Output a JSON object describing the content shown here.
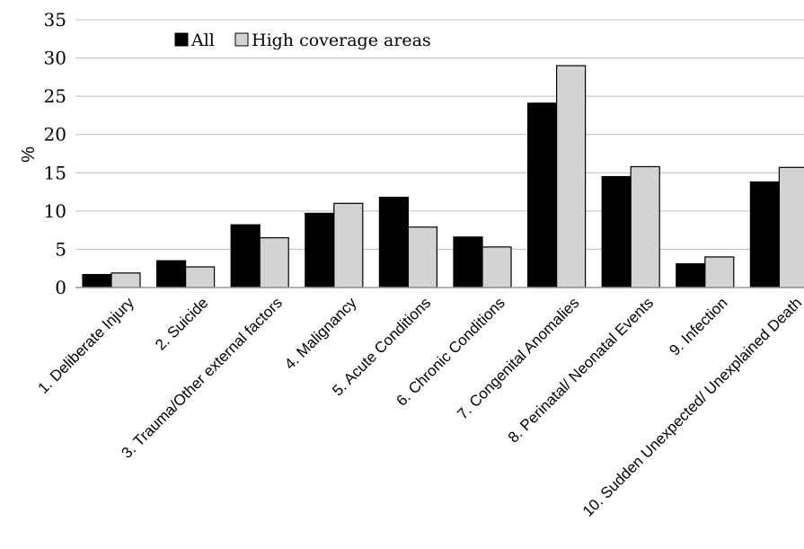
{
  "chart_data": {
    "type": "bar",
    "ylabel": "%",
    "ylim": [
      0,
      35
    ],
    "yticks": [
      0,
      5,
      10,
      15,
      20,
      25,
      30,
      35
    ],
    "grid": true,
    "legend_position": "top-left",
    "categories": [
      "1. Deliberate Injury",
      "2. Suicide",
      "3. Trauma/Other external factors",
      "4. Malignancy",
      "5. Acute Conditions",
      "6. Chronic Conditions",
      "7. Congenital Anomalies",
      "8. Perinatal/ Neonatal Events",
      "9. Infection",
      "10. Sudden Unexpected/ Unexplained Death"
    ],
    "series": [
      {
        "name": "All",
        "color": "#000000",
        "values": [
          1.7,
          3.5,
          8.2,
          9.7,
          11.8,
          6.6,
          24.1,
          14.5,
          3.1,
          13.8
        ]
      },
      {
        "name": "High coverage areas",
        "color": "#d3d3d3",
        "values": [
          1.9,
          2.7,
          6.5,
          11.0,
          7.9,
          5.3,
          29.0,
          15.8,
          4.0,
          15.7
        ]
      }
    ]
  }
}
